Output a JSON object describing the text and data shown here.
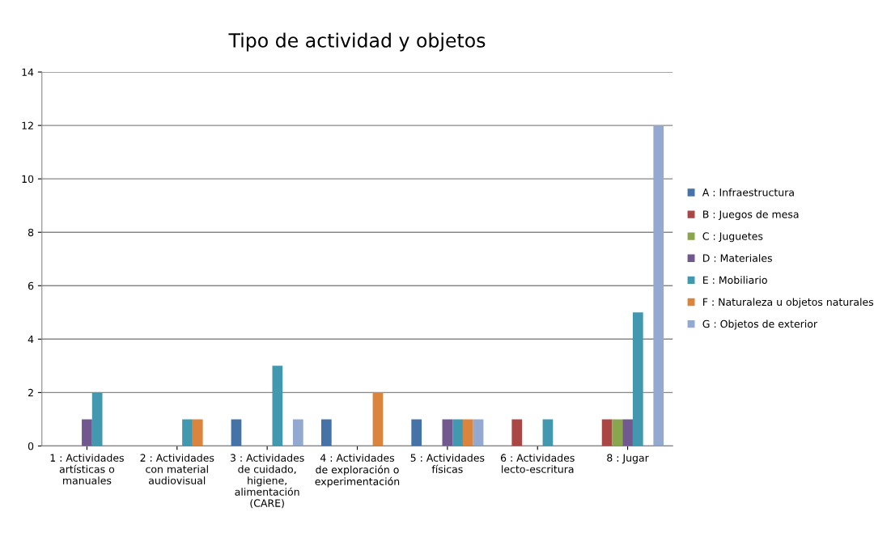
{
  "chart_data": {
    "type": "bar",
    "title": "Tipo de actividad y objetos",
    "categories": [
      "1 : Actividades\nartísticas o\nmanuales",
      "2 : Actividades\ncon material\naudiovisual",
      "3 : Actividades\nde cuidado,\nhigiene,\nalimentación\n(CARE)",
      "4 : Actividades\nde exploración o\nexperimentación",
      "5 : Actividades\nfísicas",
      "6 : Actividades\nlecto-escritura",
      "8 : Jugar"
    ],
    "series": [
      {
        "name": "A : Infraestructura",
        "color": "#4572a7",
        "values": [
          0,
          0,
          1,
          1,
          1,
          0,
          0
        ]
      },
      {
        "name": "B : Juegos de mesa",
        "color": "#aa4643",
        "values": [
          0,
          0,
          0,
          0,
          0,
          1,
          1
        ]
      },
      {
        "name": "C : Juguetes",
        "color": "#89a54e",
        "values": [
          0,
          0,
          0,
          0,
          0,
          0,
          1
        ]
      },
      {
        "name": "D : Materiales",
        "color": "#71588f",
        "values": [
          1,
          0,
          0,
          0,
          1,
          0,
          1
        ]
      },
      {
        "name": "E : Mobiliario",
        "color": "#4198af",
        "values": [
          2,
          1,
          3,
          0,
          1,
          1,
          5
        ]
      },
      {
        "name": "F : Naturaleza u objetos naturales",
        "color": "#db843d",
        "values": [
          0,
          1,
          0,
          2,
          1,
          0,
          0
        ]
      },
      {
        "name": "G : Objetos de exterior",
        "color": "#93a9cf",
        "values": [
          0,
          0,
          1,
          0,
          1,
          0,
          12
        ]
      }
    ],
    "ylim": [
      0,
      14
    ],
    "yticks": [
      0,
      2,
      4,
      6,
      8,
      10,
      12,
      14
    ],
    "grid": "y",
    "legend": "right"
  }
}
